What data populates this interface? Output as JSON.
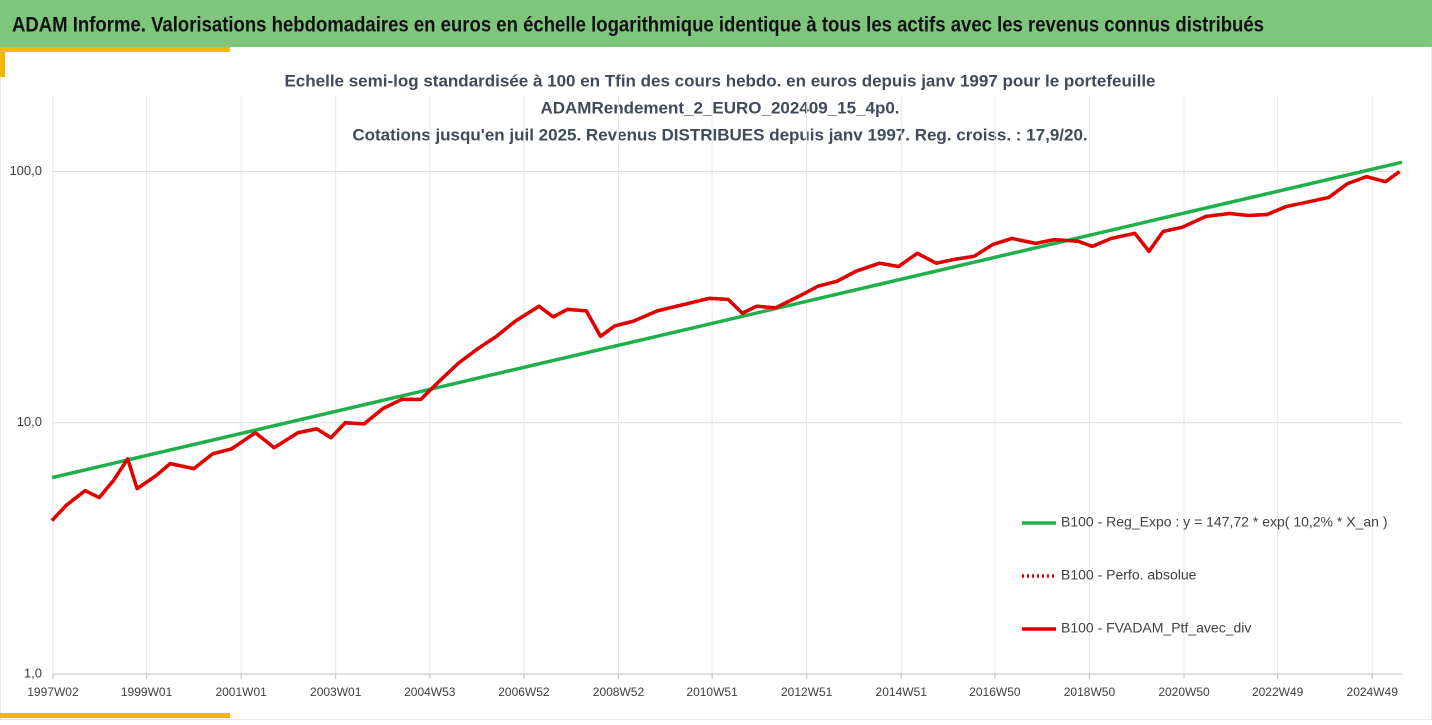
{
  "chart_data": {
    "type": "line",
    "title": "ADAM Informe. Valorisations hebdomadaires en euros en échelle logarithmique identique à tous les actifs avec les revenus connus distribués",
    "subtitle": [
      "Echelle semi-log standardisée à 100 en Tfin des cours hebdo.  en euros depuis janv 1997 pour le portefeuille",
      "ADAMRendement_2_EURO_202409_15_4p0.",
      "Cotations  jusqu'en juil 2025. Revenus DISTRIBUES depuis janv 1997. Reg. croiss. : 17,9/20."
    ],
    "log_scale": true,
    "grid": true,
    "legend": "right",
    "xlim": [
      1997.0,
      2025.55
    ],
    "xticks": [
      {
        "value": 1997.02,
        "label": "1997W02"
      },
      {
        "value": 1999.0,
        "label": "1999W01"
      },
      {
        "value": 2001.0,
        "label": "2001W01"
      },
      {
        "value": 2003.0,
        "label": "2003W01"
      },
      {
        "value": 2004.99,
        "label": "2004W53"
      },
      {
        "value": 2006.98,
        "label": "2006W52"
      },
      {
        "value": 2008.98,
        "label": "2008W52"
      },
      {
        "value": 2010.96,
        "label": "2010W51"
      },
      {
        "value": 2012.96,
        "label": "2012W51"
      },
      {
        "value": 2014.96,
        "label": "2014W51"
      },
      {
        "value": 2016.94,
        "label": "2016W50"
      },
      {
        "value": 2018.94,
        "label": "2018W50"
      },
      {
        "value": 2020.94,
        "label": "2020W50"
      },
      {
        "value": 2022.92,
        "label": "2022W49"
      },
      {
        "value": 2024.92,
        "label": "2024W49"
      }
    ],
    "ylim": [
      1,
      200
    ],
    "yticks": [
      {
        "value": 1,
        "label": "1,0"
      },
      {
        "value": 10,
        "label": "10,0"
      },
      {
        "value": 100,
        "label": "100,0"
      }
    ],
    "series": [
      {
        "name": "B100 - Reg_Expo : y = 147,72 * exp( 10,2% *  X_an )",
        "color": "#1fb04c",
        "style": "solid",
        "x": [
          1997.0,
          2025.55
        ],
        "values": [
          6.05,
          109
        ]
      },
      {
        "name": "B100 - Perfo. absolue",
        "color": "#e00000",
        "style": "dotted",
        "x": [
          1997.0,
          1997.3,
          1997.7,
          1998.0,
          1998.3,
          1998.6,
          1998.8,
          1999.2,
          1999.5,
          2000.0,
          2000.4,
          2000.8,
          2001.3,
          2001.7,
          2002.2,
          2002.6,
          2002.9,
          2003.2,
          2003.6,
          2004.0,
          2004.4,
          2004.8,
          2005.2,
          2005.6,
          2006.0,
          2006.4,
          2006.8,
          2007.3,
          2007.6,
          2007.9,
          2008.3,
          2008.6,
          2008.9,
          2009.3,
          2009.8,
          2010.4,
          2010.9,
          2011.3,
          2011.6,
          2011.9,
          2012.3,
          2012.8,
          2013.2,
          2013.6,
          2014.0,
          2014.5,
          2014.9,
          2015.3,
          2015.7,
          2016.1,
          2016.5,
          2016.9,
          2017.3,
          2017.8,
          2018.2,
          2018.7,
          2019.0,
          2019.4,
          2019.9,
          2020.2,
          2020.5,
          2020.9,
          2021.4,
          2021.9,
          2022.3,
          2022.7,
          2023.1,
          2023.6,
          2024.0,
          2024.4,
          2024.8,
          2025.2,
          2025.5
        ],
        "values": [
          4.08,
          4.69,
          5.37,
          5.04,
          5.89,
          7.19,
          5.47,
          6.16,
          6.88,
          6.57,
          7.53,
          7.88,
          9.13,
          7.96,
          9.13,
          9.46,
          8.72,
          10,
          9.9,
          11.4,
          12.4,
          12.4,
          14.7,
          17.3,
          19.7,
          22.1,
          25.4,
          29.1,
          26.4,
          28.3,
          27.9,
          22.1,
          24.3,
          25.4,
          27.9,
          29.7,
          31.3,
          31.0,
          27.3,
          29.1,
          28.7,
          31.9,
          35.0,
          36.6,
          40.1,
          43.2,
          41.9,
          47.3,
          43.2,
          44.8,
          46.0,
          51.3,
          54.2,
          51.8,
          53.6,
          52.8,
          50.4,
          54.2,
          56.8,
          48.2,
          57.8,
          60.0,
          66.3,
          68.1,
          66.9,
          67.5,
          72.6,
          76.0,
          78.9,
          89.6,
          95.5,
          91.2,
          100
        ]
      },
      {
        "name": "B100 - FVADAM_Ptf_avec_div",
        "color": "#e00000",
        "style": "solid",
        "x": [
          1997.0,
          1997.3,
          1997.7,
          1998.0,
          1998.3,
          1998.6,
          1998.8,
          1999.2,
          1999.5,
          2000.0,
          2000.4,
          2000.8,
          2001.3,
          2001.7,
          2002.2,
          2002.6,
          2002.9,
          2003.2,
          2003.6,
          2004.0,
          2004.4,
          2004.8,
          2005.2,
          2005.6,
          2006.0,
          2006.4,
          2006.8,
          2007.3,
          2007.6,
          2007.9,
          2008.3,
          2008.6,
          2008.9,
          2009.3,
          2009.8,
          2010.4,
          2010.9,
          2011.3,
          2011.6,
          2011.9,
          2012.3,
          2012.8,
          2013.2,
          2013.6,
          2014.0,
          2014.5,
          2014.9,
          2015.3,
          2015.7,
          2016.1,
          2016.5,
          2016.9,
          2017.3,
          2017.8,
          2018.2,
          2018.7,
          2019.0,
          2019.4,
          2019.9,
          2020.2,
          2020.5,
          2020.9,
          2021.4,
          2021.9,
          2022.3,
          2022.7,
          2023.1,
          2023.6,
          2024.0,
          2024.4,
          2024.8,
          2025.2,
          2025.5
        ],
        "values": [
          4.08,
          4.69,
          5.37,
          5.04,
          5.89,
          7.19,
          5.47,
          6.16,
          6.88,
          6.57,
          7.53,
          7.88,
          9.13,
          7.96,
          9.13,
          9.46,
          8.72,
          10,
          9.9,
          11.4,
          12.4,
          12.4,
          14.7,
          17.3,
          19.7,
          22.1,
          25.4,
          29.1,
          26.4,
          28.3,
          27.9,
          22.1,
          24.3,
          25.4,
          27.9,
          29.7,
          31.3,
          31.0,
          27.3,
          29.1,
          28.7,
          31.9,
          35.0,
          36.6,
          40.1,
          43.2,
          41.9,
          47.3,
          43.2,
          44.8,
          46.0,
          51.3,
          54.2,
          51.8,
          53.6,
          52.8,
          50.4,
          54.2,
          56.8,
          48.2,
          57.8,
          60.0,
          66.3,
          68.1,
          66.9,
          67.5,
          72.6,
          76.0,
          78.9,
          89.6,
          95.5,
          91.2,
          100
        ]
      }
    ]
  }
}
